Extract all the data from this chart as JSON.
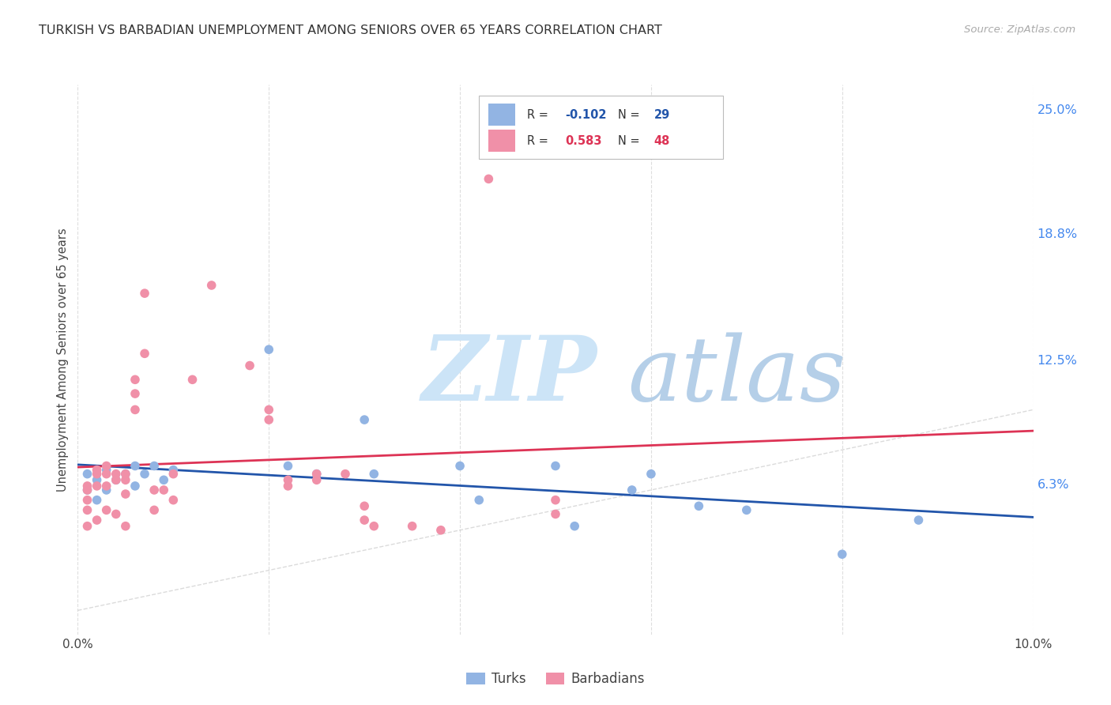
{
  "title": "TURKISH VS BARBADIAN UNEMPLOYMENT AMONG SENIORS OVER 65 YEARS CORRELATION CHART",
  "source": "Source: ZipAtlas.com",
  "ylabel": "Unemployment Among Seniors over 65 years",
  "xlim": [
    0.0,
    0.1
  ],
  "ylim": [
    -0.012,
    0.262
  ],
  "yticks_right": [
    0.063,
    0.125,
    0.188,
    0.25
  ],
  "yticks_right_labels": [
    "6.3%",
    "12.5%",
    "18.8%",
    "25.0%"
  ],
  "xticks": [
    0.0,
    0.02,
    0.04,
    0.06,
    0.08,
    0.1
  ],
  "xtick_labels": [
    "0.0%",
    "",
    "",
    "",
    "",
    "10.0%"
  ],
  "turks_color": "#92b4e3",
  "turks_line_color": "#2255aa",
  "barbadians_color": "#f090a8",
  "barbadians_line_color": "#dd3355",
  "turks_R": "-0.102",
  "turks_N": "29",
  "barbadians_R": "0.583",
  "barbadians_N": "48",
  "turks_x": [
    0.001,
    0.001,
    0.002,
    0.002,
    0.003,
    0.003,
    0.004,
    0.005,
    0.006,
    0.006,
    0.007,
    0.008,
    0.009,
    0.01,
    0.02,
    0.022,
    0.025,
    0.03,
    0.031,
    0.04,
    0.042,
    0.05,
    0.052,
    0.058,
    0.06,
    0.065,
    0.07,
    0.08,
    0.088
  ],
  "turks_y": [
    0.068,
    0.06,
    0.065,
    0.055,
    0.06,
    0.07,
    0.065,
    0.068,
    0.062,
    0.072,
    0.068,
    0.072,
    0.065,
    0.07,
    0.13,
    0.072,
    0.068,
    0.095,
    0.068,
    0.072,
    0.055,
    0.072,
    0.042,
    0.06,
    0.068,
    0.052,
    0.05,
    0.028,
    0.045
  ],
  "barbadians_x": [
    0.001,
    0.001,
    0.001,
    0.001,
    0.001,
    0.002,
    0.002,
    0.002,
    0.002,
    0.003,
    0.003,
    0.003,
    0.003,
    0.004,
    0.004,
    0.004,
    0.005,
    0.005,
    0.005,
    0.005,
    0.006,
    0.006,
    0.006,
    0.007,
    0.007,
    0.008,
    0.008,
    0.009,
    0.01,
    0.01,
    0.012,
    0.014,
    0.018,
    0.02,
    0.02,
    0.022,
    0.022,
    0.025,
    0.025,
    0.028,
    0.03,
    0.03,
    0.031,
    0.035,
    0.038,
    0.043,
    0.05,
    0.05
  ],
  "barbadians_y": [
    0.055,
    0.06,
    0.062,
    0.05,
    0.042,
    0.062,
    0.068,
    0.07,
    0.045,
    0.062,
    0.068,
    0.072,
    0.05,
    0.065,
    0.068,
    0.048,
    0.068,
    0.065,
    0.058,
    0.042,
    0.1,
    0.108,
    0.115,
    0.128,
    0.158,
    0.05,
    0.06,
    0.06,
    0.068,
    0.055,
    0.115,
    0.162,
    0.122,
    0.095,
    0.1,
    0.062,
    0.065,
    0.068,
    0.065,
    0.068,
    0.052,
    0.045,
    0.042,
    0.042,
    0.04,
    0.215,
    0.055,
    0.048
  ],
  "background_color": "#ffffff",
  "grid_color": "#dedede",
  "ref_line_color": "#cccccc",
  "wm_zip_color": "#cce4f7",
  "wm_atlas_color": "#b5cfe8"
}
